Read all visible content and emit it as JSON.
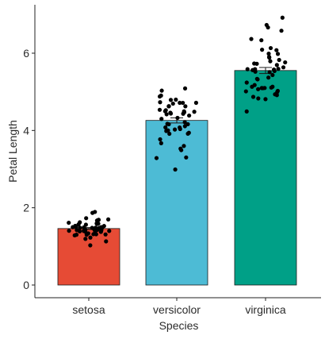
{
  "chart_data": {
    "type": "bar",
    "title": "",
    "xlabel": "Species",
    "ylabel": "Petal Length",
    "categories": [
      "setosa",
      "versicolor",
      "virginica"
    ],
    "values": [
      1.462,
      4.26,
      5.552
    ],
    "standard_errors": [
      0.025,
      0.066,
      0.078
    ],
    "ylim": [
      0,
      7.2
    ],
    "yticks": [
      0,
      2,
      4,
      6
    ],
    "grid": false,
    "legend": "none",
    "colors": [
      "#E64B35",
      "#4DBBD5",
      "#00A087"
    ],
    "points": [
      [
        1.4,
        1.4,
        1.3,
        1.5,
        1.4,
        1.7,
        1.4,
        1.5,
        1.4,
        1.5,
        1.5,
        1.6,
        1.4,
        1.1,
        1.2,
        1.5,
        1.3,
        1.4,
        1.7,
        1.5,
        1.7,
        1.5,
        1.0,
        1.7,
        1.9,
        1.6,
        1.6,
        1.5,
        1.4,
        1.6,
        1.6,
        1.5,
        1.5,
        1.4,
        1.5,
        1.2,
        1.3,
        1.4,
        1.3,
        1.5,
        1.3,
        1.3,
        1.3,
        1.6,
        1.9,
        1.4,
        1.6,
        1.4,
        1.5,
        1.4
      ],
      [
        4.7,
        4.5,
        4.9,
        4.0,
        4.6,
        4.5,
        4.7,
        3.3,
        4.6,
        3.9,
        3.5,
        4.2,
        4.0,
        4.7,
        3.6,
        4.4,
        4.5,
        4.1,
        4.5,
        3.9,
        4.8,
        4.0,
        4.9,
        4.7,
        4.3,
        4.4,
        4.8,
        5.0,
        4.5,
        3.5,
        3.8,
        3.7,
        3.9,
        5.1,
        4.5,
        4.5,
        4.7,
        4.4,
        4.1,
        4.0,
        4.4,
        4.6,
        4.0,
        3.3,
        4.2,
        4.2,
        4.2,
        4.3,
        3.0,
        4.1
      ],
      [
        6.0,
        5.1,
        5.9,
        5.6,
        5.8,
        6.6,
        4.5,
        6.3,
        5.8,
        6.1,
        5.1,
        5.3,
        5.5,
        5.0,
        5.1,
        5.3,
        5.5,
        6.7,
        6.9,
        5.0,
        5.7,
        4.9,
        6.7,
        4.9,
        5.7,
        6.0,
        4.8,
        4.9,
        5.6,
        5.8,
        6.1,
        6.4,
        5.6,
        5.1,
        5.6,
        6.1,
        5.6,
        5.5,
        4.8,
        5.4,
        5.6,
        5.1,
        5.1,
        5.9,
        5.7,
        5.2,
        5.0,
        5.2,
        5.4,
        5.1
      ]
    ]
  }
}
